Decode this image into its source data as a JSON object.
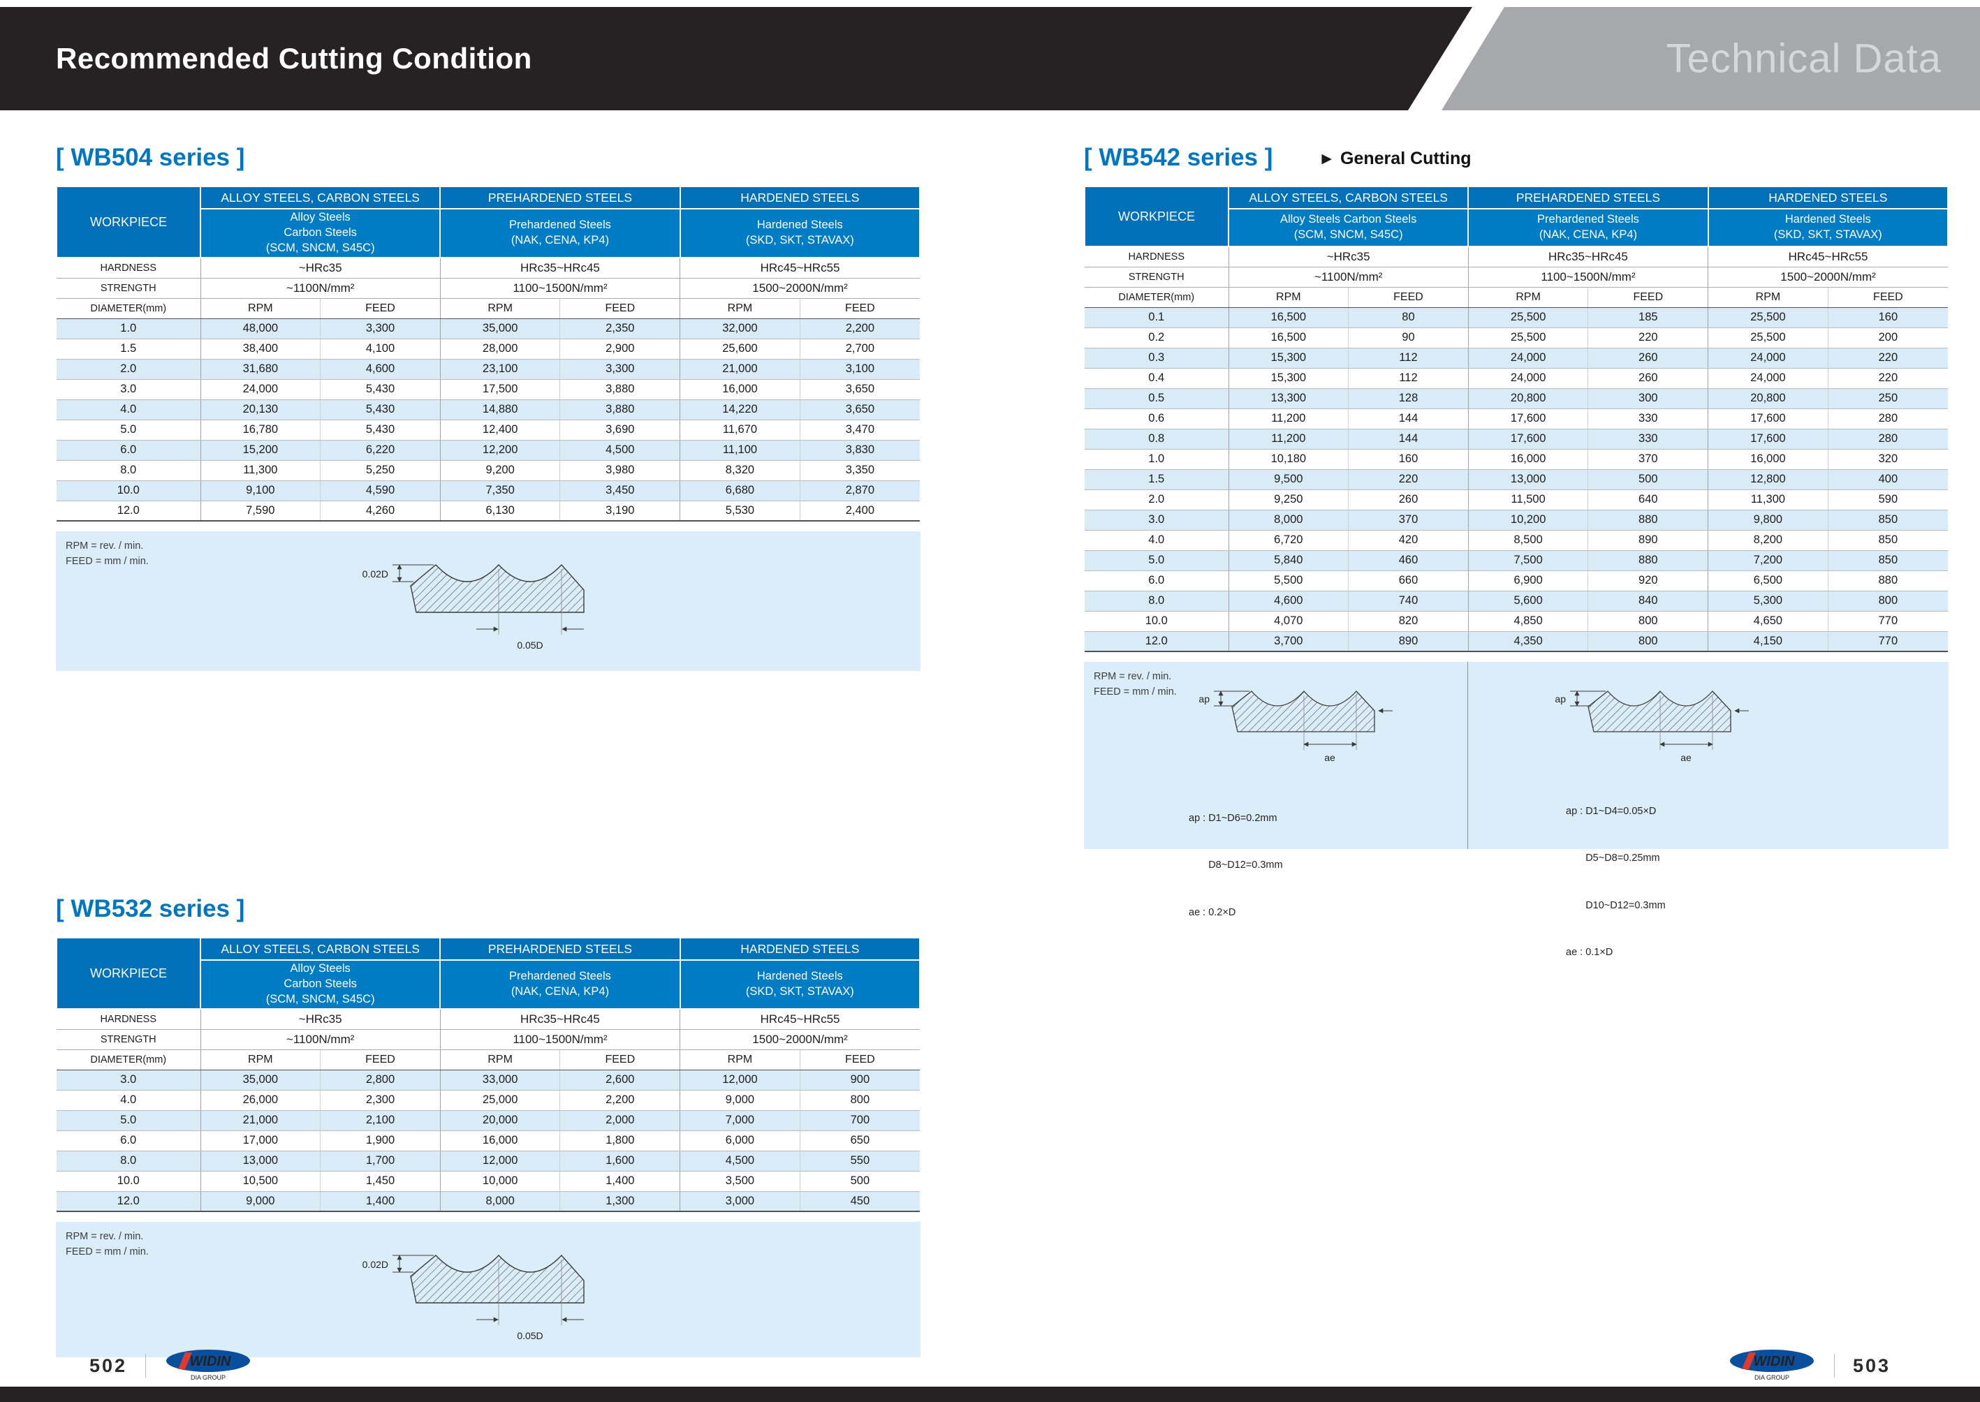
{
  "header": {
    "title": "Recommended Cutting Condition",
    "right_label": "Technical Data"
  },
  "labels": {
    "workpiece": "WORKPIECE",
    "hardness": "HARDNESS",
    "strength": "STRENGTH",
    "diameter": "DIAMETER(mm)",
    "rpm": "RPM",
    "feed": "FEED",
    "note_rpm": "RPM = rev. / min.",
    "note_feed": "FEED = mm / min.",
    "bullet": "▶"
  },
  "colors": {
    "accent_blue": "#0076c1",
    "table_header_blue": "#0070b9",
    "row_alt_blue": "#d8ebf7",
    "notes_bg": "#dbedf8",
    "header_black": "#262223",
    "header_gray": "#a6a8ab"
  },
  "tables": [
    {
      "id": "WB504",
      "title": "[ WB504 series ]",
      "groups": [
        {
          "header": "ALLOY STEELS, CARBON STEELS",
          "sub": [
            "Alloy Steels",
            "Carbon Steels",
            "(SCM, SNCM, S45C)"
          ],
          "hardness": "~HRc35",
          "strength": "~1100N/mm²"
        },
        {
          "header": "PREHARDENED STEELS",
          "sub": [
            "Prehardened Steels",
            "(NAK, CENA, KP4)"
          ],
          "hardness": "HRc35~HRc45",
          "strength": "1100~1500N/mm²"
        },
        {
          "header": "HARDENED STEELS",
          "sub": [
            "Hardened Steels",
            "(SKD, SKT, STAVAX)"
          ],
          "hardness": "HRc45~HRc55",
          "strength": "1500~2000N/mm²"
        }
      ],
      "rows": [
        {
          "d": "1.0",
          "v": [
            "48,000",
            "3,300",
            "35,000",
            "2,350",
            "32,000",
            "2,200"
          ]
        },
        {
          "d": "1.5",
          "v": [
            "38,400",
            "4,100",
            "28,000",
            "2,900",
            "25,600",
            "2,700"
          ]
        },
        {
          "d": "2.0",
          "v": [
            "31,680",
            "4,600",
            "23,100",
            "3,300",
            "21,000",
            "3,100"
          ]
        },
        {
          "d": "3.0",
          "v": [
            "24,000",
            "5,430",
            "17,500",
            "3,880",
            "16,000",
            "3,650"
          ]
        },
        {
          "d": "4.0",
          "v": [
            "20,130",
            "5,430",
            "14,880",
            "3,880",
            "14,220",
            "3,650"
          ]
        },
        {
          "d": "5.0",
          "v": [
            "16,780",
            "5,430",
            "12,400",
            "3,690",
            "11,670",
            "3,470"
          ]
        },
        {
          "d": "6.0",
          "v": [
            "15,200",
            "6,220",
            "12,200",
            "4,500",
            "11,100",
            "3,830"
          ]
        },
        {
          "d": "8.0",
          "v": [
            "11,300",
            "5,250",
            "9,200",
            "3,980",
            "8,320",
            "3,350"
          ]
        },
        {
          "d": "10.0",
          "v": [
            "9,100",
            "4,590",
            "7,350",
            "3,450",
            "6,680",
            "2,870"
          ]
        },
        {
          "d": "12.0",
          "v": [
            "7,590",
            "4,260",
            "6,130",
            "3,190",
            "5,530",
            "2,400"
          ]
        }
      ],
      "diagram": {
        "v_label": "0.02D",
        "h_label": "0.05D"
      }
    },
    {
      "id": "WB532",
      "title": "[ WB532 series ]",
      "groups": [
        {
          "header": "ALLOY STEELS, CARBON STEELS",
          "sub": [
            "Alloy Steels",
            "Carbon Steels",
            "(SCM, SNCM, S45C)"
          ],
          "hardness": "~HRc35",
          "strength": "~1100N/mm²"
        },
        {
          "header": "PREHARDENED STEELS",
          "sub": [
            "Prehardened Steels",
            "(NAK, CENA, KP4)"
          ],
          "hardness": "HRc35~HRc45",
          "strength": "1100~1500N/mm²"
        },
        {
          "header": "HARDENED STEELS",
          "sub": [
            "Hardened Steels",
            "(SKD, SKT, STAVAX)"
          ],
          "hardness": "HRc45~HRc55",
          "strength": "1500~2000N/mm²"
        }
      ],
      "rows": [
        {
          "d": "3.0",
          "v": [
            "35,000",
            "2,800",
            "33,000",
            "2,600",
            "12,000",
            "900"
          ]
        },
        {
          "d": "4.0",
          "v": [
            "26,000",
            "2,300",
            "25,000",
            "2,200",
            "9,000",
            "800"
          ]
        },
        {
          "d": "5.0",
          "v": [
            "21,000",
            "2,100",
            "20,000",
            "2,000",
            "7,000",
            "700"
          ]
        },
        {
          "d": "6.0",
          "v": [
            "17,000",
            "1,900",
            "16,000",
            "1,800",
            "6,000",
            "650"
          ]
        },
        {
          "d": "8.0",
          "v": [
            "13,000",
            "1,700",
            "12,000",
            "1,600",
            "4,500",
            "550"
          ]
        },
        {
          "d": "10.0",
          "v": [
            "10,500",
            "1,450",
            "10,000",
            "1,400",
            "3,500",
            "500"
          ]
        },
        {
          "d": "12.0",
          "v": [
            "9,000",
            "1,400",
            "8,000",
            "1,300",
            "3,000",
            "450"
          ]
        }
      ],
      "diagram": {
        "v_label": "0.02D",
        "h_label": "0.05D"
      }
    },
    {
      "id": "WB542",
      "title": "[ WB542 series ]",
      "tag": "General Cutting",
      "groups": [
        {
          "header": "ALLOY STEELS, CARBON STEELS",
          "sub": [
            "Alloy Steels Carbon Steels",
            "(SCM, SNCM, S45C)"
          ],
          "hardness": "~HRc35",
          "strength": "~1100N/mm²"
        },
        {
          "header": "PREHARDENED STEELS",
          "sub": [
            "Prehardened Steels",
            "(NAK, CENA, KP4)"
          ],
          "hardness": "HRc35~HRc45",
          "strength": "1100~1500N/mm²"
        },
        {
          "header": "HARDENED STEELS",
          "sub": [
            "Hardened Steels",
            "(SKD, SKT, STAVAX)"
          ],
          "hardness": "HRc45~HRc55",
          "strength": "1500~2000N/mm²"
        }
      ],
      "rows": [
        {
          "d": "0.1",
          "v": [
            "16,500",
            "80",
            "25,500",
            "185",
            "25,500",
            "160"
          ]
        },
        {
          "d": "0.2",
          "v": [
            "16,500",
            "90",
            "25,500",
            "220",
            "25,500",
            "200"
          ]
        },
        {
          "d": "0.3",
          "v": [
            "15,300",
            "112",
            "24,000",
            "260",
            "24,000",
            "220"
          ]
        },
        {
          "d": "0.4",
          "v": [
            "15,300",
            "112",
            "24,000",
            "260",
            "24,000",
            "220"
          ]
        },
        {
          "d": "0.5",
          "v": [
            "13,300",
            "128",
            "20,800",
            "300",
            "20,800",
            "250"
          ]
        },
        {
          "d": "0.6",
          "v": [
            "11,200",
            "144",
            "17,600",
            "330",
            "17,600",
            "280"
          ]
        },
        {
          "d": "0.8",
          "v": [
            "11,200",
            "144",
            "17,600",
            "330",
            "17,600",
            "280"
          ]
        },
        {
          "d": "1.0",
          "v": [
            "10,180",
            "160",
            "16,000",
            "370",
            "16,000",
            "320"
          ]
        },
        {
          "d": "1.5",
          "v": [
            "9,500",
            "220",
            "13,000",
            "500",
            "12,800",
            "400"
          ]
        },
        {
          "d": "2.0",
          "v": [
            "9,250",
            "260",
            "11,500",
            "640",
            "11,300",
            "590"
          ]
        },
        {
          "d": "3.0",
          "v": [
            "8,000",
            "370",
            "10,200",
            "880",
            "9,800",
            "850"
          ]
        },
        {
          "d": "4.0",
          "v": [
            "6,720",
            "420",
            "8,500",
            "890",
            "8,200",
            "850"
          ]
        },
        {
          "d": "5.0",
          "v": [
            "5,840",
            "460",
            "7,500",
            "880",
            "7,200",
            "850"
          ]
        },
        {
          "d": "6.0",
          "v": [
            "5,500",
            "660",
            "6,900",
            "920",
            "6,500",
            "880"
          ]
        },
        {
          "d": "8.0",
          "v": [
            "4,600",
            "740",
            "5,600",
            "840",
            "5,300",
            "800"
          ]
        },
        {
          "d": "10.0",
          "v": [
            "4,070",
            "820",
            "4,850",
            "800",
            "4,650",
            "770"
          ]
        },
        {
          "d": "12.0",
          "v": [
            "3,700",
            "890",
            "4,350",
            "800",
            "4,150",
            "770"
          ]
        }
      ],
      "diagrams": [
        {
          "v_label": "ap",
          "h_label": "ae",
          "notes": [
            "ap : D1~D6=0.2mm",
            "       D8~D12=0.3mm",
            "ae : 0.2×D"
          ]
        },
        {
          "v_label": "ap",
          "h_label": "ae",
          "notes": [
            "ap : D1~D4=0.05×D",
            "       D5~D8=0.25mm",
            "       D10~D12=0.3mm",
            "ae : 0.1×D"
          ]
        }
      ]
    }
  ],
  "footer": {
    "left_page": "502",
    "right_page": "503",
    "logo": "WIDIN",
    "logo_sub": "DIA GROUP"
  }
}
